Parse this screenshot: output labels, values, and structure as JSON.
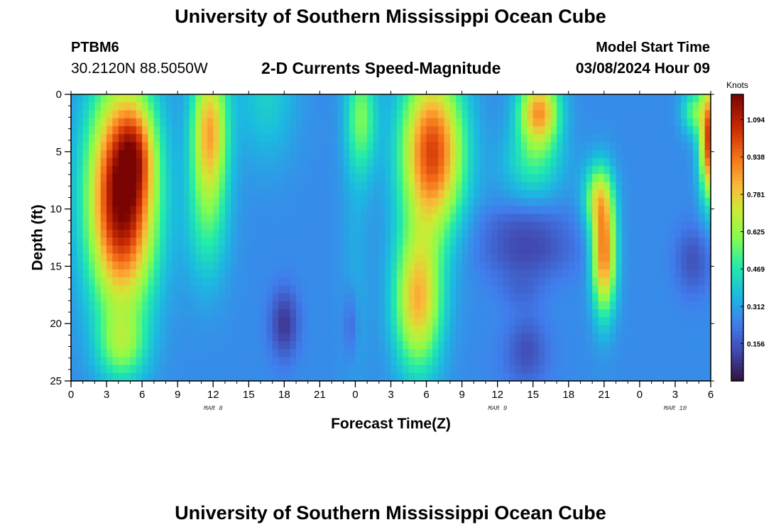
{
  "header": {
    "title": "University of Southern Mississippi Ocean Cube",
    "station_id": "PTBM6",
    "station_coords": "30.2120N  88.5050W",
    "plot_title": "2-D Currents Speed-Magnitude",
    "start_label": "Model Start Time",
    "start_value": "03/08/2024 Hour 09"
  },
  "footer": {
    "title": "University of Southern Mississippi Ocean Cube"
  },
  "chart_data": {
    "type": "heatmap",
    "xlabel": "Forecast Time(Z)",
    "ylabel": "Depth (ft)",
    "x_ticks": [
      "0",
      "3",
      "6",
      "9",
      "12",
      "15",
      "18",
      "21",
      "0",
      "3",
      "6",
      "9",
      "12",
      "15",
      "18",
      "21",
      "0",
      "3",
      "6"
    ],
    "x_range_hours": [
      0,
      54
    ],
    "date_labels": [
      {
        "label": "MAR 8",
        "hour": 12
      },
      {
        "label": "MAR 9",
        "hour": 36
      },
      {
        "label": "MAR 10",
        "hour": 51
      }
    ],
    "y_ticks": [
      0,
      5,
      10,
      15,
      20,
      25
    ],
    "ylim": [
      0,
      25
    ],
    "y_inverted": true,
    "colorbar": {
      "title": "Knots",
      "ticks": [
        "1.094",
        "0.938",
        "0.781",
        "0.625",
        "0.469",
        "0.312",
        "0.156"
      ],
      "range": [
        0,
        1.2
      ]
    },
    "features": [
      {
        "t": 4.3,
        "d": 9,
        "st": 2.8,
        "sd": 9.5,
        "a": 0.95
      },
      {
        "t": 4.3,
        "d": 22,
        "st": 2.0,
        "sd": 3,
        "a": 0.25
      },
      {
        "t": 11.7,
        "d": 3,
        "st": 1.5,
        "sd": 6,
        "a": 0.55
      },
      {
        "t": 11.5,
        "d": 11,
        "st": 1.8,
        "sd": 6,
        "a": 0.2
      },
      {
        "t": 5.5,
        "d": 5,
        "st": 1.5,
        "sd": 4,
        "a": 0.25
      },
      {
        "t": 30.5,
        "d": 5,
        "st": 2.6,
        "sd": 7,
        "a": 0.75
      },
      {
        "t": 29.3,
        "d": 18,
        "st": 2.0,
        "sd": 6,
        "a": 0.55
      },
      {
        "t": 24.5,
        "d": 2,
        "st": 1.3,
        "sd": 5,
        "a": 0.3
      },
      {
        "t": 39.5,
        "d": 1.5,
        "st": 1.7,
        "sd": 3,
        "a": 0.6
      },
      {
        "t": 39.0,
        "d": 6,
        "st": 2.5,
        "sd": 3,
        "a": 0.2
      },
      {
        "t": 45.0,
        "d": 14,
        "st": 1.0,
        "sd": 5,
        "a": 0.65
      },
      {
        "t": 44.5,
        "d": 9,
        "st": 1.2,
        "sd": 3,
        "a": 0.35
      },
      {
        "t": 54.0,
        "d": 4,
        "st": 0.9,
        "sd": 5,
        "a": 0.8
      },
      {
        "t": 52.5,
        "d": 1.5,
        "st": 1.0,
        "sd": 2,
        "a": 0.25
      },
      {
        "t": 16.5,
        "d": 0,
        "st": 2.5,
        "sd": 6,
        "a": 0.14
      },
      {
        "t": 24,
        "d": 15,
        "st": 1.2,
        "sd": 12,
        "a": 0.06
      }
    ],
    "lows": [
      {
        "t": 18,
        "d": 20,
        "st": 1.2,
        "sd": 3,
        "a": 0.18
      },
      {
        "t": 23.6,
        "d": 20,
        "st": 0.6,
        "sd": 3,
        "a": 0.1
      },
      {
        "t": 38.5,
        "d": 13.5,
        "st": 4,
        "sd": 2.5,
        "a": 0.14
      },
      {
        "t": 38.5,
        "d": 22,
        "st": 1.5,
        "sd": 3,
        "a": 0.08
      },
      {
        "t": 38,
        "d": 17,
        "st": 2,
        "sd": 1.8,
        "a": 0.06
      },
      {
        "t": 38,
        "d": 11,
        "st": 4,
        "sd": 1.5,
        "a": 0.05
      },
      {
        "t": 38.3,
        "d": 23,
        "st": 2.5,
        "sd": 3,
        "a": 0.05
      },
      {
        "t": 52.5,
        "d": 14.5,
        "st": 1.5,
        "sd": 3,
        "a": 0.12
      }
    ]
  }
}
